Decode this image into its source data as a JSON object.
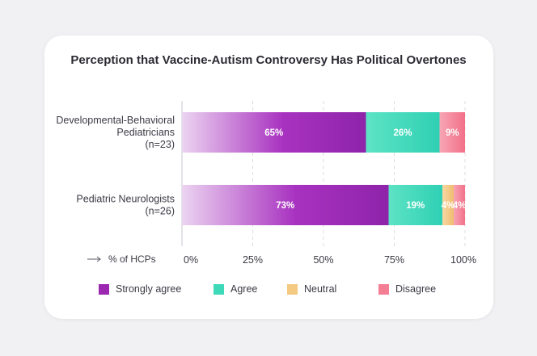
{
  "chart_data": {
    "type": "bar",
    "orientation": "horizontal",
    "stacked": true,
    "title": "Perception that Vaccine-Autism Controversy Has Political Overtones",
    "xlabel": "% of HCPs",
    "xlim": [
      0,
      100
    ],
    "xticks": [
      "0%",
      "25%",
      "50%",
      "75%",
      "100%"
    ],
    "grid": true,
    "legend_position": "bottom",
    "categories": [
      {
        "lines": [
          "Developmental-Behavioral",
          "Pediatricians"
        ],
        "n": "(n=23)"
      },
      {
        "lines": [
          "Pediatric Neurologists"
        ],
        "n": "(n=26)"
      }
    ],
    "series": [
      {
        "name": "Strongly agree",
        "color": "#9c27b0",
        "values": [
          65,
          73
        ],
        "labels": [
          "65%",
          "73%"
        ]
      },
      {
        "name": "Agree",
        "color": "#3ed9b9",
        "values": [
          26,
          19
        ],
        "labels": [
          "26%",
          "19%"
        ]
      },
      {
        "name": "Neutral",
        "color": "#f4c982",
        "values": [
          0,
          4
        ],
        "labels": [
          "",
          "4%"
        ]
      },
      {
        "name": "Disagree",
        "color": "#f47f95",
        "values": [
          9,
          4
        ],
        "labels": [
          "9%",
          "4%"
        ]
      }
    ]
  }
}
